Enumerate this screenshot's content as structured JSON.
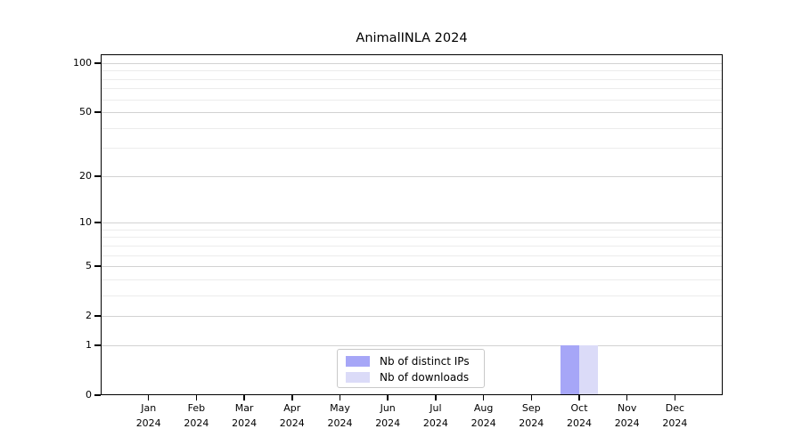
{
  "chart_data": {
    "type": "bar",
    "title": "AnimalINLA 2024",
    "xlabel": "",
    "ylabel": "",
    "categories": [
      "Jan",
      "Feb",
      "Mar",
      "Apr",
      "May",
      "Jun",
      "Jul",
      "Aug",
      "Sep",
      "Oct",
      "Nov",
      "Dec"
    ],
    "category_year": "2024",
    "series": [
      {
        "name": "Nb of distinct IPs",
        "color": "#a6a6f7",
        "values": [
          0,
          0,
          0,
          0,
          0,
          0,
          0,
          0,
          0,
          1,
          0,
          0
        ]
      },
      {
        "name": "Nb of downloads",
        "color": "#dbdbf8",
        "values": [
          0,
          0,
          0,
          0,
          0,
          0,
          0,
          0,
          0,
          1,
          0,
          0
        ]
      }
    ],
    "yscale": "log1p",
    "ylim": [
      0,
      110
    ],
    "yticks": [
      0,
      1,
      2,
      5,
      10,
      20,
      50,
      100
    ],
    "minor_gridline_values": [
      3,
      4,
      6,
      7,
      8,
      9,
      30,
      40,
      60,
      70,
      80,
      90
    ],
    "grid": true,
    "legend_position": "bottom-center",
    "colors": {
      "axis": "#000000",
      "major_grid": "#d2d2d2",
      "minor_grid": "#ececec",
      "legend_border": "#c9c9c9",
      "background": "#ffffff",
      "text": "#000000"
    }
  }
}
